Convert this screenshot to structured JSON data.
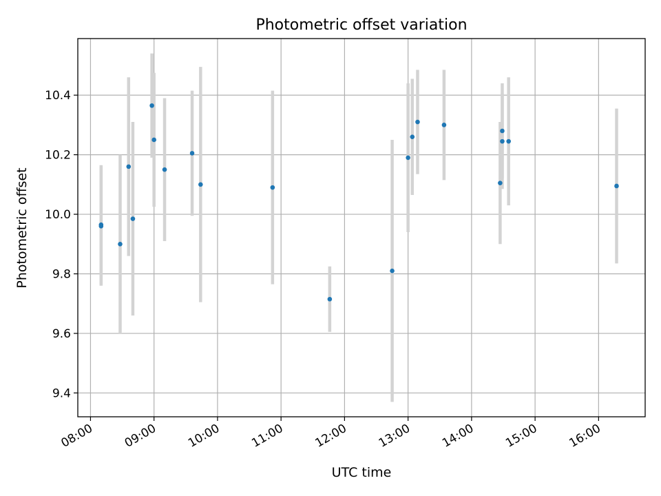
{
  "chart_data": {
    "type": "scatter",
    "title": "Photometric offset variation",
    "xlabel": "UTC time",
    "ylabel": "Photometric offset",
    "x_ticks": [
      "08:00",
      "09:00",
      "10:00",
      "11:00",
      "12:00",
      "13:00",
      "14:00",
      "15:00",
      "16:00"
    ],
    "y_ticks": [
      9.4,
      9.6,
      9.8,
      10.0,
      10.2,
      10.4
    ],
    "xlim": [
      "07:48",
      "16:44"
    ],
    "ylim": [
      9.32,
      10.59
    ],
    "grid": true,
    "marker_color": "#1f77b4",
    "errorbar_color": "#d3d3d3",
    "points": [
      {
        "x": "08:10",
        "y": 9.96,
        "err": 0.2
      },
      {
        "x": "08:10",
        "y": 9.965,
        "err": 0.2
      },
      {
        "x": "08:28",
        "y": 9.9,
        "err": 0.3
      },
      {
        "x": "08:36",
        "y": 10.16,
        "err": 0.3
      },
      {
        "x": "08:40",
        "y": 9.985,
        "err": 0.325
      },
      {
        "x": "08:58",
        "y": 10.365,
        "err": 0.175
      },
      {
        "x": "09:00",
        "y": 10.25,
        "err": 0.225
      },
      {
        "x": "09:10",
        "y": 10.15,
        "err": 0.24
      },
      {
        "x": "09:36",
        "y": 10.205,
        "err": 0.21
      },
      {
        "x": "09:44",
        "y": 10.1,
        "err": 0.395
      },
      {
        "x": "10:52",
        "y": 10.09,
        "err": 0.325
      },
      {
        "x": "11:46",
        "y": 9.715,
        "err": 0.11
      },
      {
        "x": "12:45",
        "y": 9.81,
        "err": 0.44
      },
      {
        "x": "13:00",
        "y": 10.19,
        "err": 0.25
      },
      {
        "x": "13:04",
        "y": 10.26,
        "err": 0.195
      },
      {
        "x": "13:09",
        "y": 10.31,
        "err": 0.175
      },
      {
        "x": "13:34",
        "y": 10.3,
        "err": 0.185
      },
      {
        "x": "14:27",
        "y": 10.105,
        "err": 0.205
      },
      {
        "x": "14:29",
        "y": 10.28,
        "err": 0.16
      },
      {
        "x": "14:29",
        "y": 10.245,
        "err": 0.16
      },
      {
        "x": "14:35",
        "y": 10.245,
        "err": 0.215
      },
      {
        "x": "16:17",
        "y": 10.095,
        "err": 0.26
      }
    ]
  }
}
